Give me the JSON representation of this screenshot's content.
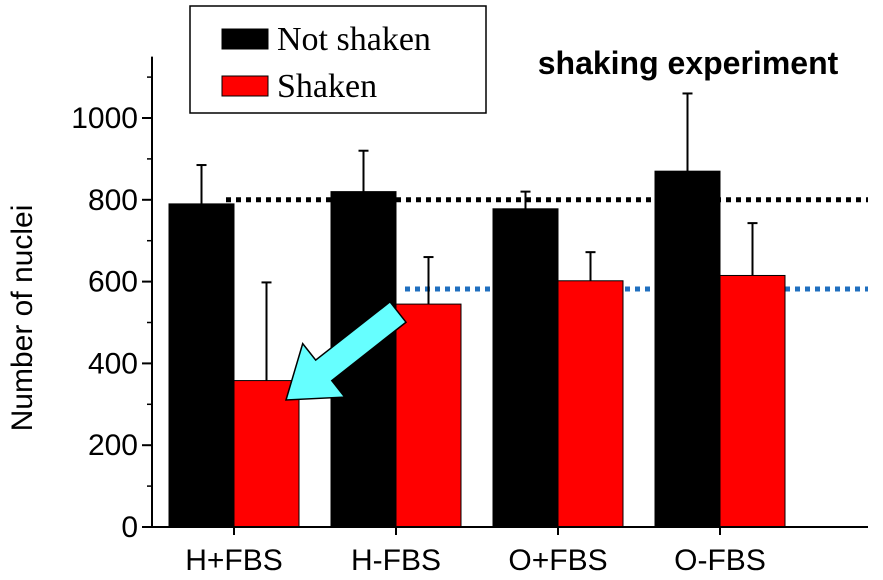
{
  "chart_data": {
    "type": "bar",
    "title": "shaking experiment",
    "xlabel": "",
    "ylabel": "Number of nuclei",
    "ylim": [
      0,
      1150
    ],
    "yticks": [
      0,
      200,
      400,
      600,
      800,
      1000
    ],
    "categories": [
      "H+FBS",
      "H-FBS",
      "O+FBS",
      "O-FBS"
    ],
    "series": [
      {
        "name": "Not shaken",
        "color": "#000000",
        "values": [
          790,
          820,
          778,
          870
        ],
        "errors": [
          95,
          100,
          42,
          190
        ]
      },
      {
        "name": "Shaken",
        "color": "#ff0000",
        "values": [
          358,
          545,
          602,
          615
        ],
        "errors": [
          240,
          115,
          70,
          128
        ]
      }
    ],
    "reference_lines": [
      {
        "value": 800,
        "color": "#000000",
        "style": "dotted"
      },
      {
        "value": 582,
        "color": "#1f6fbf",
        "style": "dotted"
      }
    ],
    "annotation_arrow": {
      "color": "#66ffff",
      "points_to": "H+FBS Shaken"
    },
    "legend": {
      "placement": "top-left",
      "box": true
    },
    "grid": false
  }
}
